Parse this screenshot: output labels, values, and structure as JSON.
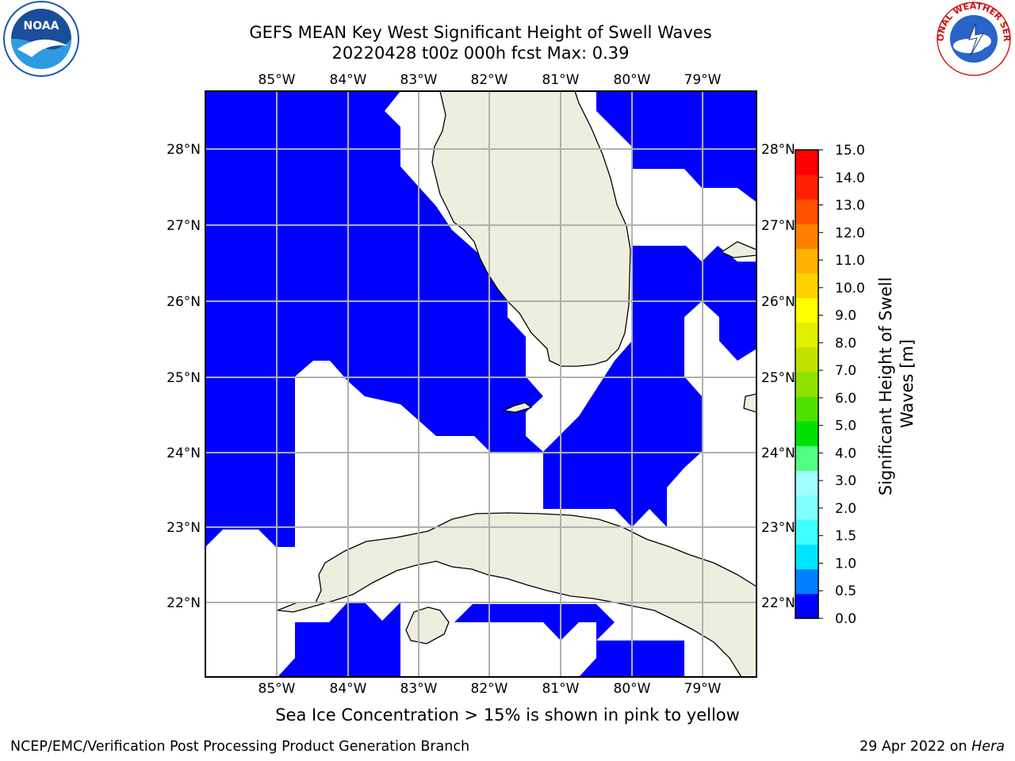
{
  "header": {
    "title_line1": "GEFS MEAN Key West Significant Height of Swell Waves",
    "title_line2": "20220428 t00z 000h fcst   Max: 0.39"
  },
  "map": {
    "lon_labels": [
      "85°W",
      "84°W",
      "83°W",
      "82°W",
      "81°W",
      "80°W",
      "79°W"
    ],
    "lat_labels": [
      "28°N",
      "27°N",
      "26°N",
      "25°N",
      "24°N",
      "23°N",
      "22°N"
    ],
    "colors": {
      "wave_fill": "#0000ff",
      "land": "#eeeedf",
      "coast": "#000000",
      "grid": "#b0b0b0"
    }
  },
  "colorbar": {
    "label_line1": "Significant Height of Swell",
    "label_line2": "Waves [m]",
    "ticks": [
      "0.0",
      "0.5",
      "1.0",
      "1.5",
      "2.0",
      "3.0",
      "4.0",
      "5.0",
      "6.0",
      "7.0",
      "8.0",
      "9.0",
      "10.0",
      "11.0",
      "12.0",
      "13.0",
      "14.0",
      "15.0"
    ],
    "colors": [
      "#0000ff",
      "#0080ff",
      "#00e5ff",
      "#40ffff",
      "#80ffff",
      "#a0ffff",
      "#50ff80",
      "#00e000",
      "#50e000",
      "#90e000",
      "#c0e000",
      "#e0f000",
      "#ffff00",
      "#ffd000",
      "#ffb000",
      "#ff8000",
      "#ff5000",
      "#ff2000",
      "#ff0000"
    ]
  },
  "note": "Sea Ice Concentration > 15% is shown in pink to yellow",
  "footer": {
    "left": "NCEP/EMC/Verification Post Processing Product Generation Branch",
    "right_date": "29 Apr 2022 on ",
    "right_host": "Hera"
  },
  "logos": {
    "noaa_text": "NOAA",
    "nws_text": "NATIONAL WEATHER SERVICE"
  }
}
